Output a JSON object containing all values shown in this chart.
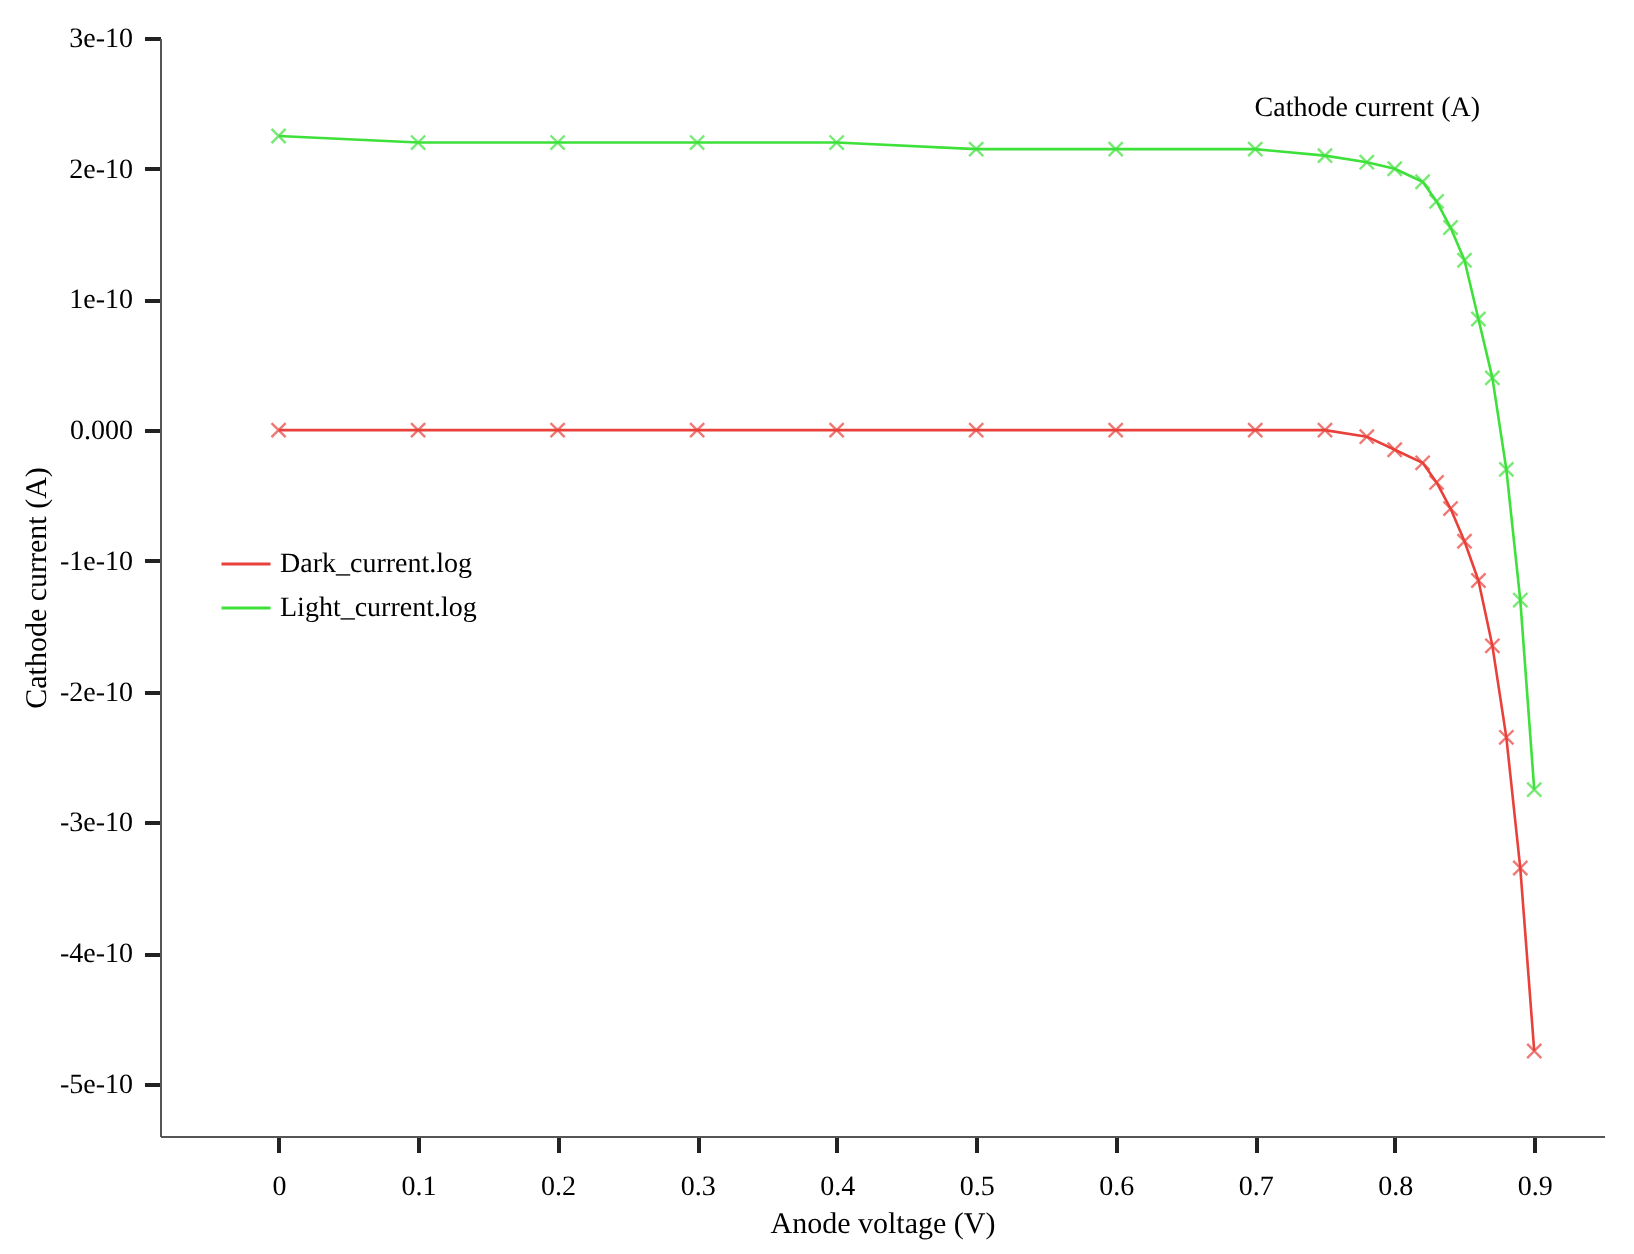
{
  "chart_data": {
    "type": "line",
    "xlabel": "Anode voltage (V)",
    "ylabel": "Cathode current (A)",
    "annotations": [
      "Cathode current (A)"
    ],
    "xlim": [
      -0.085,
      0.95
    ],
    "xticks": [
      0,
      0.1,
      0.2,
      0.3,
      0.4,
      0.5,
      0.6,
      0.7,
      0.8,
      0.9
    ],
    "ylim": [
      -5.4e-10,
      3e-10
    ],
    "yticks": [
      3e-10,
      2e-10,
      1e-10,
      {
        "value": 0,
        "label": "0.000"
      },
      -1e-10,
      -2e-10,
      -3e-10,
      -4e-10,
      -5e-10
    ],
    "grid": false,
    "legend": "left",
    "marker": "cross",
    "line_style": "solid",
    "series": [
      {
        "name": "Dark_current.log",
        "color": "#e8403a",
        "x": [
          0,
          0.1,
          0.2,
          0.3,
          0.4,
          0.5,
          0.6,
          0.7,
          0.75,
          0.78,
          0.8,
          0.82,
          0.83,
          0.84,
          0.85,
          0.86,
          0.87,
          0.88,
          0.89,
          0.9
        ],
        "values": [
          0,
          0,
          0,
          0,
          0,
          0,
          0,
          0,
          0,
          -5e-12,
          -1.5e-11,
          -2.5e-11,
          -4e-11,
          -6e-11,
          -8.5e-11,
          -1.15e-10,
          -1.65e-10,
          -2.35e-10,
          -3.35e-10,
          -4.75e-10
        ]
      },
      {
        "name": "Light_current.log",
        "color": "#3ee03a",
        "x": [
          0,
          0.1,
          0.2,
          0.3,
          0.4,
          0.5,
          0.6,
          0.7,
          0.75,
          0.78,
          0.8,
          0.82,
          0.83,
          0.84,
          0.85,
          0.86,
          0.87,
          0.88,
          0.89,
          0.9
        ],
        "values": [
          2.25e-10,
          2.2e-10,
          2.2e-10,
          2.2e-10,
          2.2e-10,
          2.15e-10,
          2.15e-10,
          2.15e-10,
          2.1e-10,
          2.05e-10,
          2e-10,
          1.9e-10,
          1.75e-10,
          1.55e-10,
          1.3e-10,
          8.5e-11,
          4e-11,
          -3e-11,
          -1.3e-10,
          -2.75e-10
        ]
      }
    ]
  }
}
